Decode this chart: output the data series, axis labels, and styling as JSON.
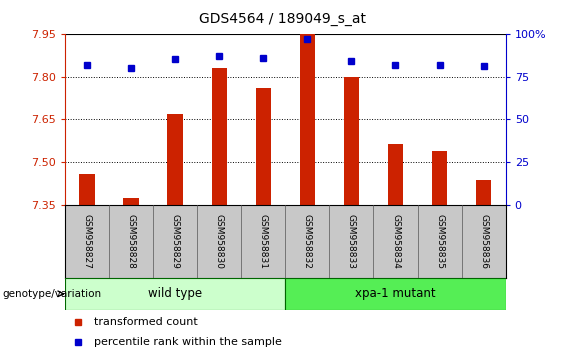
{
  "title": "GDS4564 / 189049_s_at",
  "samples": [
    "GSM958827",
    "GSM958828",
    "GSM958829",
    "GSM958830",
    "GSM958831",
    "GSM958832",
    "GSM958833",
    "GSM958834",
    "GSM958835",
    "GSM958836"
  ],
  "transformed_count": [
    7.46,
    7.375,
    7.67,
    7.83,
    7.76,
    7.95,
    7.8,
    7.565,
    7.54,
    7.44
  ],
  "percentile_rank": [
    82,
    80,
    85,
    87,
    86,
    97,
    84,
    82,
    82,
    81
  ],
  "ylim_left": [
    7.35,
    7.95
  ],
  "ylim_right": [
    0,
    100
  ],
  "yticks_left": [
    7.35,
    7.5,
    7.65,
    7.8,
    7.95
  ],
  "yticks_right": [
    0,
    25,
    50,
    75,
    100
  ],
  "bar_color": "#cc2200",
  "dot_color": "#0000cc",
  "bar_width": 0.35,
  "groups": [
    {
      "label": "wild type",
      "start": 0,
      "end": 4,
      "color": "#ccffcc",
      "edgecolor": "#006600"
    },
    {
      "label": "xpa-1 mutant",
      "start": 5,
      "end": 9,
      "color": "#55ee55",
      "edgecolor": "#006600"
    }
  ],
  "genotype_label": "genotype/variation",
  "legend_items": [
    {
      "color": "#cc2200",
      "label": "transformed count"
    },
    {
      "color": "#0000cc",
      "label": "percentile rank within the sample"
    }
  ],
  "tick_label_color_left": "#cc2200",
  "tick_label_color_right": "#0000cc",
  "sample_box_color": "#c8c8c8",
  "sample_box_edge": "#555555"
}
